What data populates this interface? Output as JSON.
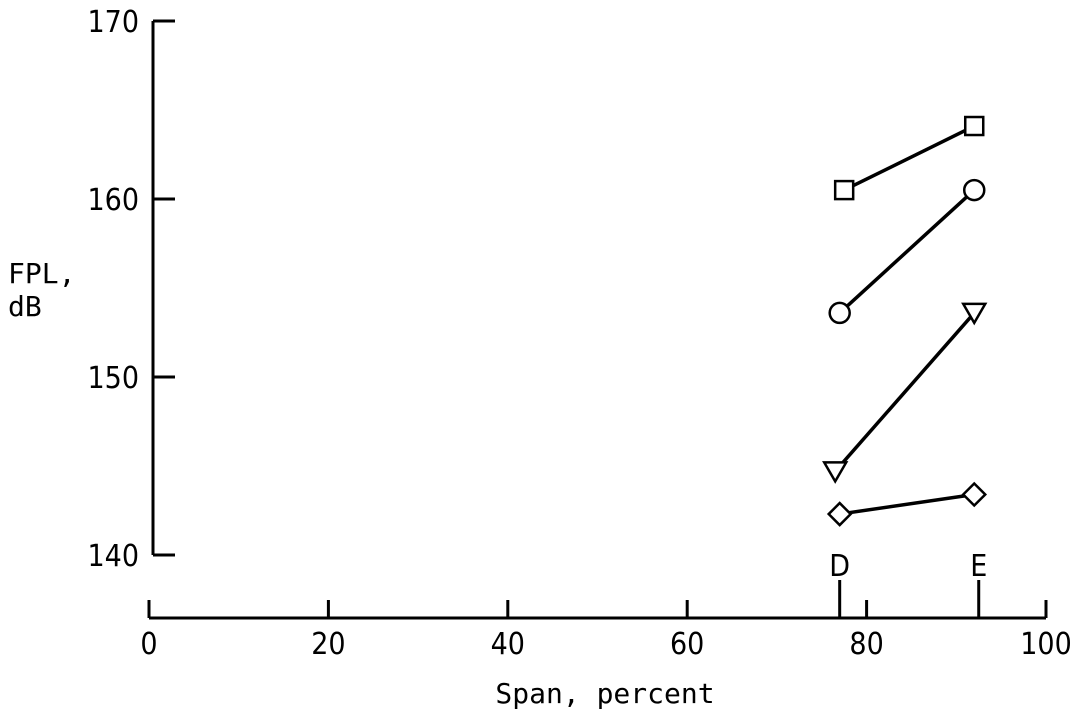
{
  "chart_data": {
    "type": "line",
    "ylabel_lines": [
      "FPL,",
      "dB"
    ],
    "xlabel": "Span, percent",
    "xlim": [
      0,
      100
    ],
    "ylim": [
      140,
      170
    ],
    "x_ticks": [
      0,
      20,
      40,
      60,
      80,
      100
    ],
    "y_ticks": [
      140,
      150,
      160,
      170
    ],
    "x_markers": [
      {
        "label": "D",
        "x": 77
      },
      {
        "label": "E",
        "x": 92.5
      }
    ],
    "series": [
      {
        "marker": "square",
        "points": [
          [
            77.5,
            160.5
          ],
          [
            92,
            164.1
          ]
        ]
      },
      {
        "marker": "circle",
        "points": [
          [
            77,
            153.6
          ],
          [
            92,
            160.5
          ]
        ]
      },
      {
        "marker": "triangle-down",
        "points": [
          [
            76.5,
            144.7
          ],
          [
            92,
            153.6
          ]
        ]
      },
      {
        "marker": "diamond",
        "points": [
          [
            77,
            142.3
          ],
          [
            92,
            143.4
          ]
        ]
      }
    ]
  }
}
